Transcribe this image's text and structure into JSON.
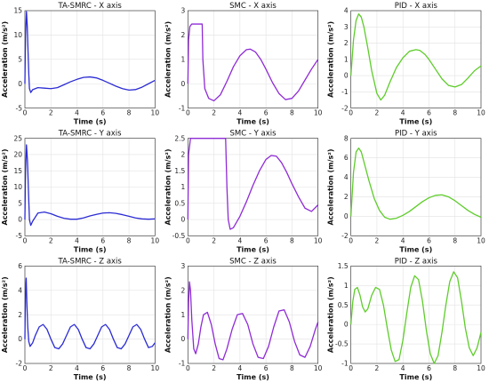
{
  "figure": {
    "rows": 3,
    "cols": 3
  },
  "chart_data": [
    {
      "type": "line",
      "title": "TA-SMRC - X axis",
      "xlabel": "Time (s)",
      "ylabel": "Acceleration (m/s²)",
      "xlim": [
        0,
        10
      ],
      "ylim": [
        -5,
        15
      ],
      "xticks": [
        0,
        2,
        4,
        6,
        8,
        10
      ],
      "yticks": [
        -5,
        0,
        5,
        10,
        15
      ],
      "grid": true,
      "color": "#2b2bd4",
      "x": [
        0,
        0.05,
        0.12,
        0.18,
        0.25,
        0.3,
        0.35,
        0.45,
        0.6,
        1.0,
        1.5,
        2.0,
        2.5,
        3.0,
        3.5,
        4.0,
        4.5,
        5.0,
        5.5,
        6.0,
        6.5,
        7.0,
        7.5,
        8.0,
        8.5,
        9.0,
        9.5,
        10.0
      ],
      "y": [
        0,
        10,
        14.8,
        12,
        6,
        2,
        -1,
        -1.8,
        -1.2,
        -0.8,
        -0.9,
        -1.0,
        -0.8,
        -0.2,
        0.4,
        0.9,
        1.3,
        1.4,
        1.2,
        0.7,
        0.1,
        -0.5,
        -1.0,
        -1.3,
        -1.2,
        -0.7,
        0.0,
        0.7
      ]
    },
    {
      "type": "line",
      "title": "SMC - X axis",
      "xlabel": "Time (s)",
      "ylabel": "Acceleration (m/s²)",
      "xlim": [
        0,
        10
      ],
      "ylim": [
        -1,
        3
      ],
      "xticks": [
        0,
        2,
        4,
        6,
        8,
        10
      ],
      "yticks": [
        -1,
        0,
        1,
        2,
        3
      ],
      "grid": true,
      "color": "#8f2bd6",
      "x": [
        0,
        0.05,
        0.15,
        0.3,
        0.6,
        0.9,
        1.1,
        1.15,
        1.3,
        1.6,
        2.0,
        2.5,
        3.0,
        3.5,
        4.0,
        4.5,
        4.8,
        5.2,
        5.6,
        6.0,
        6.5,
        7.0,
        7.5,
        8.0,
        8.5,
        9.0,
        9.5,
        10.0
      ],
      "y": [
        0,
        1.8,
        2.35,
        2.45,
        2.45,
        2.45,
        2.45,
        1.0,
        -0.2,
        -0.6,
        -0.7,
        -0.45,
        0.1,
        0.7,
        1.15,
        1.4,
        1.42,
        1.3,
        1.0,
        0.6,
        0.05,
        -0.4,
        -0.65,
        -0.6,
        -0.3,
        0.15,
        0.6,
        1.0
      ]
    },
    {
      "type": "line",
      "title": "PID - X axis",
      "xlabel": "Time (s)",
      "ylabel": "Acceleration (m/s²)",
      "xlim": [
        0,
        10
      ],
      "ylim": [
        -2,
        4
      ],
      "xticks": [
        0,
        2,
        4,
        6,
        8,
        10
      ],
      "yticks": [
        -2,
        -1,
        0,
        1,
        2,
        3,
        4
      ],
      "grid": true,
      "color": "#5ecc2a",
      "x": [
        0,
        0.2,
        0.4,
        0.6,
        0.8,
        1.0,
        1.3,
        1.6,
        2.0,
        2.3,
        2.6,
        3.0,
        3.5,
        4.0,
        4.5,
        5.0,
        5.3,
        5.7,
        6.0,
        6.5,
        7.0,
        7.5,
        8.0,
        8.5,
        9.0,
        9.5,
        10.0
      ],
      "y": [
        0,
        2.2,
        3.4,
        3.8,
        3.6,
        3.0,
        1.7,
        0.3,
        -1.1,
        -1.5,
        -1.2,
        -0.4,
        0.5,
        1.1,
        1.5,
        1.6,
        1.55,
        1.3,
        1.0,
        0.4,
        -0.2,
        -0.6,
        -0.7,
        -0.55,
        -0.15,
        0.3,
        0.6
      ]
    },
    {
      "type": "line",
      "title": "TA-SMRC - Y axis",
      "xlabel": "Time (s)",
      "ylabel": "Acceleration (m/s²)",
      "xlim": [
        0,
        10
      ],
      "ylim": [
        -5,
        25
      ],
      "xticks": [
        0,
        2,
        4,
        6,
        8,
        10
      ],
      "yticks": [
        -5,
        0,
        5,
        10,
        15,
        20,
        25
      ],
      "grid": true,
      "color": "#2b2bd4",
      "x": [
        0,
        0.05,
        0.12,
        0.2,
        0.28,
        0.35,
        0.45,
        0.6,
        1.0,
        1.5,
        2.0,
        2.5,
        3.0,
        3.5,
        4.0,
        4.5,
        5.0,
        5.5,
        6.0,
        6.5,
        7.0,
        7.5,
        8.0,
        8.5,
        9.0,
        9.5,
        10.0
      ],
      "y": [
        0,
        15,
        23,
        18,
        8,
        0,
        -1.8,
        -0.5,
        2.0,
        2.3,
        1.8,
        1.0,
        0.4,
        0.1,
        0.1,
        0.5,
        1.1,
        1.6,
        2.0,
        2.1,
        1.9,
        1.5,
        1.0,
        0.5,
        0.2,
        0.1,
        0.2
      ]
    },
    {
      "type": "line",
      "title": "SMC - Y axis",
      "xlabel": "Time (s)",
      "ylabel": "Acceleration (m/s²)",
      "xlim": [
        0,
        10
      ],
      "ylim": [
        -0.5,
        2.5
      ],
      "xticks": [
        0,
        2,
        4,
        6,
        8,
        10
      ],
      "yticks": [
        -0.5,
        0,
        0.5,
        1,
        1.5,
        2,
        2.5
      ],
      "grid": true,
      "color": "#8f2bd6",
      "x": [
        0,
        0.05,
        0.2,
        0.5,
        1.0,
        1.5,
        2.0,
        2.5,
        2.9,
        3.0,
        3.1,
        3.25,
        3.5,
        4.0,
        4.5,
        5.0,
        5.5,
        6.0,
        6.4,
        6.8,
        7.2,
        7.6,
        8.0,
        8.5,
        9.0,
        9.5,
        10.0
      ],
      "y": [
        0,
        2.0,
        2.5,
        2.5,
        2.5,
        2.5,
        2.5,
        2.5,
        2.5,
        1.0,
        0.0,
        -0.3,
        -0.25,
        0.1,
        0.55,
        1.05,
        1.5,
        1.85,
        1.97,
        1.95,
        1.75,
        1.45,
        1.1,
        0.7,
        0.35,
        0.25,
        0.45
      ]
    },
    {
      "type": "line",
      "title": "PID - Y axis",
      "xlabel": "Time (s)",
      "ylabel": "Acceleration (m/s²)",
      "xlim": [
        0,
        10
      ],
      "ylim": [
        -2,
        8
      ],
      "xticks": [
        0,
        2,
        4,
        6,
        8,
        10
      ],
      "yticks": [
        -2,
        0,
        2,
        4,
        6,
        8
      ],
      "grid": true,
      "color": "#5ecc2a",
      "x": [
        0,
        0.2,
        0.4,
        0.6,
        0.8,
        1.0,
        1.4,
        1.8,
        2.2,
        2.6,
        3.0,
        3.5,
        4.0,
        4.5,
        5.0,
        5.5,
        6.0,
        6.5,
        7.0,
        7.5,
        8.0,
        8.5,
        9.0,
        9.5,
        10.0
      ],
      "y": [
        0,
        4.5,
        6.6,
        7.0,
        6.6,
        5.6,
        3.6,
        1.8,
        0.6,
        -0.1,
        -0.3,
        -0.2,
        0.1,
        0.5,
        1.0,
        1.5,
        1.9,
        2.15,
        2.2,
        2.0,
        1.6,
        1.1,
        0.6,
        0.2,
        -0.1
      ]
    },
    {
      "type": "line",
      "title": "TA-SMRC - Z axis",
      "xlabel": "Time (s)",
      "ylabel": "Acceleration (m/s²)",
      "xlim": [
        0,
        10
      ],
      "ylim": [
        -2,
        6
      ],
      "xticks": [
        0,
        2,
        4,
        6,
        8,
        10
      ],
      "yticks": [
        -2,
        0,
        2,
        4,
        6
      ],
      "grid": true,
      "color": "#2b2bd4",
      "x": [
        0,
        0.05,
        0.1,
        0.15,
        0.22,
        0.3,
        0.4,
        0.6,
        0.8,
        1.1,
        1.4,
        1.7,
        2.0,
        2.3,
        2.6,
        2.9,
        3.2,
        3.5,
        3.8,
        4.1,
        4.4,
        4.7,
        5.0,
        5.3,
        5.6,
        5.9,
        6.2,
        6.5,
        6.8,
        7.1,
        7.4,
        7.7,
        8.0,
        8.3,
        8.6,
        8.9,
        9.2,
        9.5,
        9.8,
        10.0
      ],
      "y": [
        0,
        4.0,
        5.0,
        3.0,
        1.0,
        -0.2,
        -0.6,
        -0.3,
        0.3,
        1.0,
        1.2,
        0.8,
        0.0,
        -0.7,
        -0.8,
        -0.4,
        0.3,
        1.0,
        1.2,
        0.8,
        0.0,
        -0.7,
        -0.8,
        -0.4,
        0.3,
        1.0,
        1.2,
        0.8,
        0.0,
        -0.7,
        -0.8,
        -0.4,
        0.3,
        1.0,
        1.2,
        0.8,
        0.0,
        -0.7,
        -0.6,
        -0.3
      ]
    },
    {
      "type": "line",
      "title": "SMC - Z axis",
      "xlabel": "Time (s)",
      "ylabel": "Acceleration (m/s²)",
      "xlim": [
        0,
        10
      ],
      "ylim": [
        -1,
        3
      ],
      "xticks": [
        0,
        2,
        4,
        6,
        8,
        10
      ],
      "yticks": [
        -1,
        0,
        1,
        2,
        3
      ],
      "grid": true,
      "color": "#8f2bd6",
      "x": [
        0,
        0.05,
        0.12,
        0.2,
        0.3,
        0.45,
        0.6,
        0.8,
        1.0,
        1.2,
        1.5,
        1.8,
        2.1,
        2.4,
        2.7,
        3.0,
        3.4,
        3.8,
        4.2,
        4.6,
        5.0,
        5.4,
        5.8,
        6.2,
        6.6,
        7.0,
        7.4,
        7.8,
        8.2,
        8.6,
        9.0,
        9.4,
        9.8,
        10.0
      ],
      "y": [
        0,
        1.5,
        2.35,
        2.0,
        0.8,
        -0.4,
        -0.6,
        -0.2,
        0.5,
        1.0,
        1.1,
        0.6,
        -0.2,
        -0.8,
        -0.85,
        -0.4,
        0.4,
        1.0,
        1.05,
        0.6,
        -0.2,
        -0.75,
        -0.8,
        -0.3,
        0.5,
        1.15,
        1.2,
        0.7,
        -0.1,
        -0.65,
        -0.75,
        -0.3,
        0.4,
        0.7
      ]
    },
    {
      "type": "line",
      "title": "PID - Z axis",
      "xlabel": "Time (s)",
      "ylabel": "Acceleration (m/s²)",
      "xlim": [
        0,
        10
      ],
      "ylim": [
        -1,
        1.5
      ],
      "xticks": [
        0,
        2,
        4,
        6,
        8,
        10
      ],
      "yticks": [
        -1,
        -0.5,
        0,
        0.5,
        1,
        1.5
      ],
      "grid": true,
      "color": "#5ecc2a",
      "x": [
        0,
        0.15,
        0.3,
        0.5,
        0.7,
        0.9,
        1.1,
        1.3,
        1.6,
        1.9,
        2.2,
        2.5,
        2.8,
        3.1,
        3.4,
        3.7,
        4.0,
        4.3,
        4.6,
        4.9,
        5.2,
        5.5,
        5.8,
        6.1,
        6.4,
        6.7,
        7.0,
        7.3,
        7.6,
        7.9,
        8.2,
        8.5,
        8.8,
        9.1,
        9.4,
        9.7,
        10.0
      ],
      "y": [
        0,
        0.6,
        0.9,
        0.95,
        0.75,
        0.45,
        0.32,
        0.4,
        0.75,
        0.95,
        0.9,
        0.5,
        -0.1,
        -0.65,
        -0.95,
        -0.9,
        -0.4,
        0.3,
        0.95,
        1.25,
        1.15,
        0.6,
        -0.15,
        -0.75,
        -1.0,
        -0.8,
        -0.2,
        0.5,
        1.1,
        1.35,
        1.2,
        0.6,
        -0.1,
        -0.6,
        -0.8,
        -0.6,
        -0.2
      ]
    }
  ]
}
